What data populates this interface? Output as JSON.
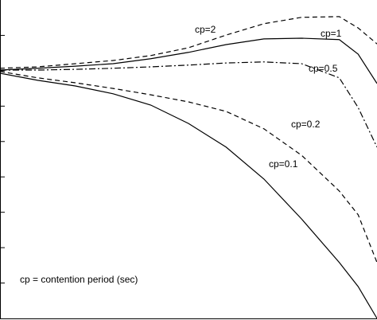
{
  "chart_data": {
    "type": "line",
    "annotation": "cp = contention period (sec)",
    "x": [
      0,
      1,
      2,
      3,
      4,
      5,
      6,
      7,
      8,
      9,
      9.5,
      10
    ],
    "xlim": [
      0,
      10
    ],
    "ylim": [
      0,
      9
    ],
    "yticks": [
      1,
      2,
      3,
      4,
      5,
      6,
      7,
      8
    ],
    "series": [
      {
        "name": "cp=2",
        "color": "#000000",
        "dash": "6 4",
        "values": [
          7.07,
          7.11,
          7.2,
          7.29,
          7.43,
          7.65,
          8.01,
          8.33,
          8.51,
          8.53,
          8.21,
          7.76
        ]
      },
      {
        "name": "cp=1",
        "color": "#000000",
        "dash": "none",
        "values": [
          7.02,
          7.07,
          7.13,
          7.2,
          7.34,
          7.52,
          7.74,
          7.9,
          7.92,
          7.88,
          7.47,
          6.64
        ]
      },
      {
        "name": "cp=0.5",
        "color": "#000000",
        "dash": "8 3 2 3",
        "values": [
          7.02,
          7.02,
          7.04,
          7.07,
          7.11,
          7.16,
          7.22,
          7.25,
          7.2,
          6.8,
          5.96,
          4.84
        ]
      },
      {
        "name": "cp=0.2",
        "color": "#000000",
        "dash": "6 4",
        "values": [
          6.98,
          6.8,
          6.66,
          6.5,
          6.32,
          6.12,
          5.85,
          5.36,
          4.61,
          3.6,
          2.93,
          1.58
        ]
      },
      {
        "name": "cp=0.1",
        "color": "#000000",
        "dash": "none",
        "values": [
          6.93,
          6.73,
          6.57,
          6.35,
          6.03,
          5.51,
          4.84,
          3.94,
          2.81,
          1.58,
          0.9,
          0
        ]
      }
    ]
  }
}
